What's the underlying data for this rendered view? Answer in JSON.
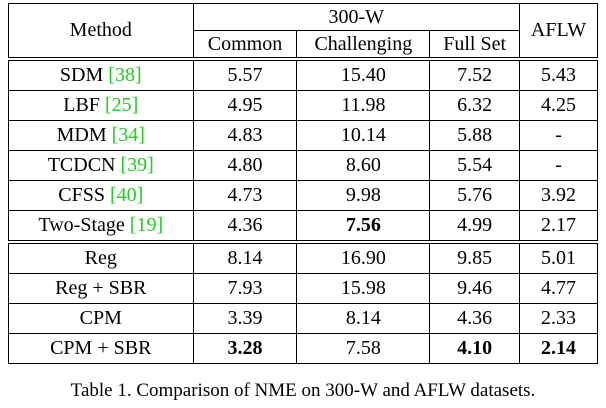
{
  "table": {
    "header": {
      "method": "Method",
      "group": "300-W",
      "columns": [
        "Common",
        "Challenging",
        "Full Set"
      ],
      "aflw": "AFLW"
    },
    "blocks": [
      {
        "rows": [
          {
            "method": "SDM",
            "ref": "[38]",
            "cells": [
              "5.57",
              "15.40",
              "7.52",
              "5.43"
            ]
          },
          {
            "method": "LBF",
            "ref": "[25]",
            "cells": [
              "4.95",
              "11.98",
              "6.32",
              "4.25"
            ]
          },
          {
            "method": "MDM",
            "ref": "[34]",
            "cells": [
              "4.83",
              "10.14",
              "5.88",
              "-"
            ]
          },
          {
            "method": "TCDCN",
            "ref": "[39]",
            "cells": [
              "4.80",
              "8.60",
              "5.54",
              "-"
            ]
          },
          {
            "method": "CFSS",
            "ref": "[40]",
            "cells": [
              "4.73",
              "9.98",
              "5.76",
              "3.92"
            ]
          },
          {
            "method": "Two-Stage",
            "ref": "[19]",
            "cells": [
              "4.36",
              "7.56",
              "4.99",
              "2.17"
            ],
            "bold": [
              1
            ]
          }
        ]
      },
      {
        "rows": [
          {
            "method": "Reg",
            "cells": [
              "8.14",
              "16.90",
              "9.85",
              "5.01"
            ]
          },
          {
            "method": "Reg + SBR",
            "cells": [
              "7.93",
              "15.98",
              "9.46",
              "4.77"
            ]
          }
        ]
      },
      {
        "rows": [
          {
            "method": "CPM",
            "cells": [
              "3.39",
              "8.14",
              "4.36",
              "2.33"
            ]
          },
          {
            "method": "CPM + SBR",
            "cells": [
              "3.28",
              "7.58",
              "4.10",
              "2.14"
            ],
            "bold": [
              0,
              2,
              3
            ]
          }
        ]
      }
    ]
  },
  "caption": "Table 1. Comparison of NME on 300-W and AFLW datasets."
}
